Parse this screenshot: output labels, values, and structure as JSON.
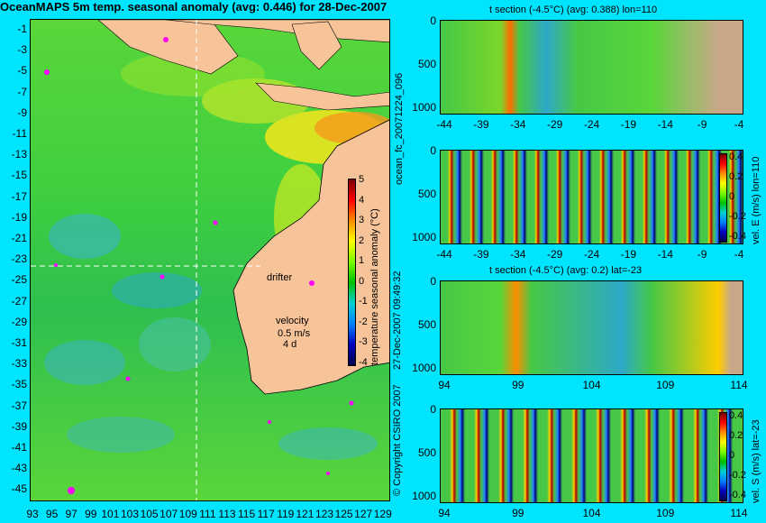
{
  "title": "OceanMAPS 5m temp. seasonal anomaly (avg: 0.446) for 28-Dec-2007",
  "map": {
    "lat_ticks": [
      "-1",
      "-3",
      "-5",
      "-7",
      "-9",
      "-11",
      "-13",
      "-15",
      "-17",
      "-19",
      "-21",
      "-23",
      "-25",
      "-27",
      "-29",
      "-31",
      "-33",
      "-35",
      "-37",
      "-39",
      "-41",
      "-43",
      "-45"
    ],
    "lon_ticks": [
      "93",
      "95",
      "97",
      "99",
      "101",
      "103",
      "105",
      "107",
      "109",
      "111",
      "113",
      "115",
      "117",
      "119",
      "121",
      "123",
      "125",
      "127",
      "129"
    ],
    "colorbar_ticks": [
      "5",
      "4",
      "3",
      "2",
      "1",
      "0",
      "-1",
      "-2",
      "-3",
      "-4"
    ],
    "colorbar_label": "temperature seasonal anomaly (°C)",
    "drifter_label": "drifter",
    "velocity_label": "velocity",
    "velocity_scale": "0.5 m/s",
    "velocity_time": "4 d",
    "colors": {
      "land": "#f7c49a",
      "ocean_green": "#3fcf3f",
      "marker": "#ff00ff",
      "page_bg": "#00e5ff"
    }
  },
  "sections": [
    {
      "title": "t section (-4.5°C) (avg: 0.388) lon=110",
      "y_ticks": [
        "0",
        "500",
        "1000"
      ],
      "x_ticks": [
        "-44",
        "-39",
        "-34",
        "-29",
        "-24",
        "-19",
        "-14",
        "-9",
        "-4"
      ]
    },
    {
      "title": "",
      "y_ticks": [
        "0",
        "500",
        "1000"
      ],
      "x_ticks": [
        "-44",
        "-39",
        "-34",
        "-29",
        "-24",
        "-19",
        "-14",
        "-9",
        "-4"
      ],
      "colorbar_ticks": [
        "0.4",
        "0.2",
        "0",
        "-0.2",
        "-0.4"
      ],
      "colorbar_label": "vel. E (m/s) lon=110"
    },
    {
      "title": "t section (-4.5°C) (avg: 0.2) lat=-23",
      "y_ticks": [
        "0",
        "500",
        "1000"
      ],
      "x_ticks": [
        "94",
        "99",
        "104",
        "109",
        "114"
      ]
    },
    {
      "title": "",
      "y_ticks": [
        "0",
        "500",
        "1000"
      ],
      "x_ticks": [
        "94",
        "99",
        "104",
        "109",
        "114"
      ],
      "colorbar_ticks": [
        "0.4",
        "0.2",
        "0",
        "-0.2",
        "-0.4"
      ],
      "colorbar_label": "vel. S (m/s) lat=-23"
    }
  ],
  "side_labels": {
    "file_id": "ocean_fc_20071224_096",
    "run_date": "27-Dec-2007 09:49:32",
    "copyright": "© Copyright CSIRO 2007"
  }
}
